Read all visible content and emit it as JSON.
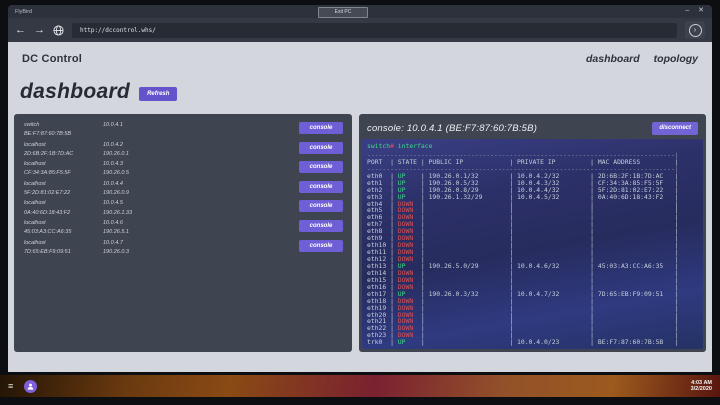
{
  "desktop": {
    "window_title": "FlyBird",
    "exit_pc_label": "Exit PC",
    "icons": {
      "minimize": "–",
      "close": "✕",
      "back_arrow": "←",
      "forward_arrow": "→",
      "go_arrow": "›",
      "menu": "≡"
    },
    "taskbar": {
      "time": "4:03 AM",
      "date": "3/2/2020"
    }
  },
  "browser": {
    "url": "http://dccontrol.whs/"
  },
  "site": {
    "brand": "DC Control",
    "nav": [
      {
        "label": "dashboard"
      },
      {
        "label": "topology"
      }
    ],
    "page_title": "dashboard",
    "refresh_label": "Refresh",
    "console_button_label": "console",
    "devices": [
      {
        "name": "switch",
        "mac": "BE:F7:87:60:7B:5B",
        "ip": "10.0.4.1",
        "public_ip": ""
      },
      {
        "name": "localhost",
        "mac": "2D:6B:2F:1B:7D:AC",
        "ip": "10.0.4.2",
        "public_ip": "190.26.0.1"
      },
      {
        "name": "localhost",
        "mac": "CF:34:3A:85:F5:5F",
        "ip": "10.0.4.3",
        "public_ip": "190.26.0.5"
      },
      {
        "name": "localhost",
        "mac": "5F:2D:81:02:E7:22",
        "ip": "10.0.4.4",
        "public_ip": "190.26.0.9"
      },
      {
        "name": "localhost",
        "mac": "0A:40:6D:18:43:F2",
        "ip": "10.0.4.5",
        "public_ip": "190.26.1.33"
      },
      {
        "name": "localhost",
        "mac": "45:03:A3:CC:A6:35",
        "ip": "10.0.4.6",
        "public_ip": "190.26.5.1"
      },
      {
        "name": "localhost",
        "mac": "7D:65:EB:F9:09:51",
        "ip": "10.0.4.7",
        "public_ip": "190.26.0.3"
      }
    ],
    "console": {
      "title": "console: 10.0.4.1 (BE:F7:87:60:7B:5B)",
      "disconnect_label": "disconnect",
      "prompt": "switch",
      "prompt_symbol": "#",
      "command": "interface",
      "table": {
        "headers": [
          "PORT",
          "STATE",
          "PUBLIC IP",
          "PRIVATE IP",
          "MAC ADDRESS"
        ],
        "rows": [
          {
            "port": "eth0",
            "state": "UP",
            "public_ip": "190.26.0.1/32",
            "private_ip": "10.0.4.2/32",
            "mac": "2D:6B:2F:1B:7D:AC"
          },
          {
            "port": "eth1",
            "state": "UP",
            "public_ip": "190.26.0.5/32",
            "private_ip": "10.0.4.3/32",
            "mac": "CF:34:3A:85:F5:5F"
          },
          {
            "port": "eth2",
            "state": "UP",
            "public_ip": "190.26.0.8/29",
            "private_ip": "10.0.4.4/32",
            "mac": "5F:2D:81:02:E7:22"
          },
          {
            "port": "eth3",
            "state": "UP",
            "public_ip": "190.26.1.32/29",
            "private_ip": "10.0.4.5/32",
            "mac": "0A:40:6D:18:43:F2"
          },
          {
            "port": "eth4",
            "state": "DOWN",
            "public_ip": "",
            "private_ip": "",
            "mac": ""
          },
          {
            "port": "eth5",
            "state": "DOWN",
            "public_ip": "",
            "private_ip": "",
            "mac": ""
          },
          {
            "port": "eth6",
            "state": "DOWN",
            "public_ip": "",
            "private_ip": "",
            "mac": ""
          },
          {
            "port": "eth7",
            "state": "DOWN",
            "public_ip": "",
            "private_ip": "",
            "mac": ""
          },
          {
            "port": "eth8",
            "state": "DOWN",
            "public_ip": "",
            "private_ip": "",
            "mac": ""
          },
          {
            "port": "eth9",
            "state": "DOWN",
            "public_ip": "",
            "private_ip": "",
            "mac": ""
          },
          {
            "port": "eth10",
            "state": "DOWN",
            "public_ip": "",
            "private_ip": "",
            "mac": ""
          },
          {
            "port": "eth11",
            "state": "DOWN",
            "public_ip": "",
            "private_ip": "",
            "mac": ""
          },
          {
            "port": "eth12",
            "state": "DOWN",
            "public_ip": "",
            "private_ip": "",
            "mac": ""
          },
          {
            "port": "eth13",
            "state": "UP",
            "public_ip": "190.26.5.0/29",
            "private_ip": "10.0.4.6/32",
            "mac": "45:03:A3:CC:A6:35"
          },
          {
            "port": "eth14",
            "state": "DOWN",
            "public_ip": "",
            "private_ip": "",
            "mac": ""
          },
          {
            "port": "eth15",
            "state": "DOWN",
            "public_ip": "",
            "private_ip": "",
            "mac": ""
          },
          {
            "port": "eth16",
            "state": "DOWN",
            "public_ip": "",
            "private_ip": "",
            "mac": ""
          },
          {
            "port": "eth17",
            "state": "UP",
            "public_ip": "190.26.0.3/32",
            "private_ip": "10.0.4.7/32",
            "mac": "7D:65:EB:F9:09:51"
          },
          {
            "port": "eth18",
            "state": "DOWN",
            "public_ip": "",
            "private_ip": "",
            "mac": ""
          },
          {
            "port": "eth19",
            "state": "DOWN",
            "public_ip": "",
            "private_ip": "",
            "mac": ""
          },
          {
            "port": "eth20",
            "state": "DOWN",
            "public_ip": "",
            "private_ip": "",
            "mac": ""
          },
          {
            "port": "eth21",
            "state": "DOWN",
            "public_ip": "",
            "private_ip": "",
            "mac": ""
          },
          {
            "port": "eth22",
            "state": "DOWN",
            "public_ip": "",
            "private_ip": "",
            "mac": ""
          },
          {
            "port": "eth23",
            "state": "DOWN",
            "public_ip": "",
            "private_ip": "",
            "mac": ""
          },
          {
            "port": "trk0",
            "state": "UP",
            "public_ip": "",
            "private_ip": "10.0.4.0/23",
            "mac": "BE:F7:87:60:7B:5B"
          }
        ]
      }
    }
  },
  "colors": {
    "accent_purple": "#6f5fd6",
    "refresh_purple": "#6454cb",
    "terminal_up_green": "#3ddc84",
    "terminal_down_red": "#e05151",
    "page_bg": "#d3d6dc",
    "panel_bg": "#3f4451"
  }
}
